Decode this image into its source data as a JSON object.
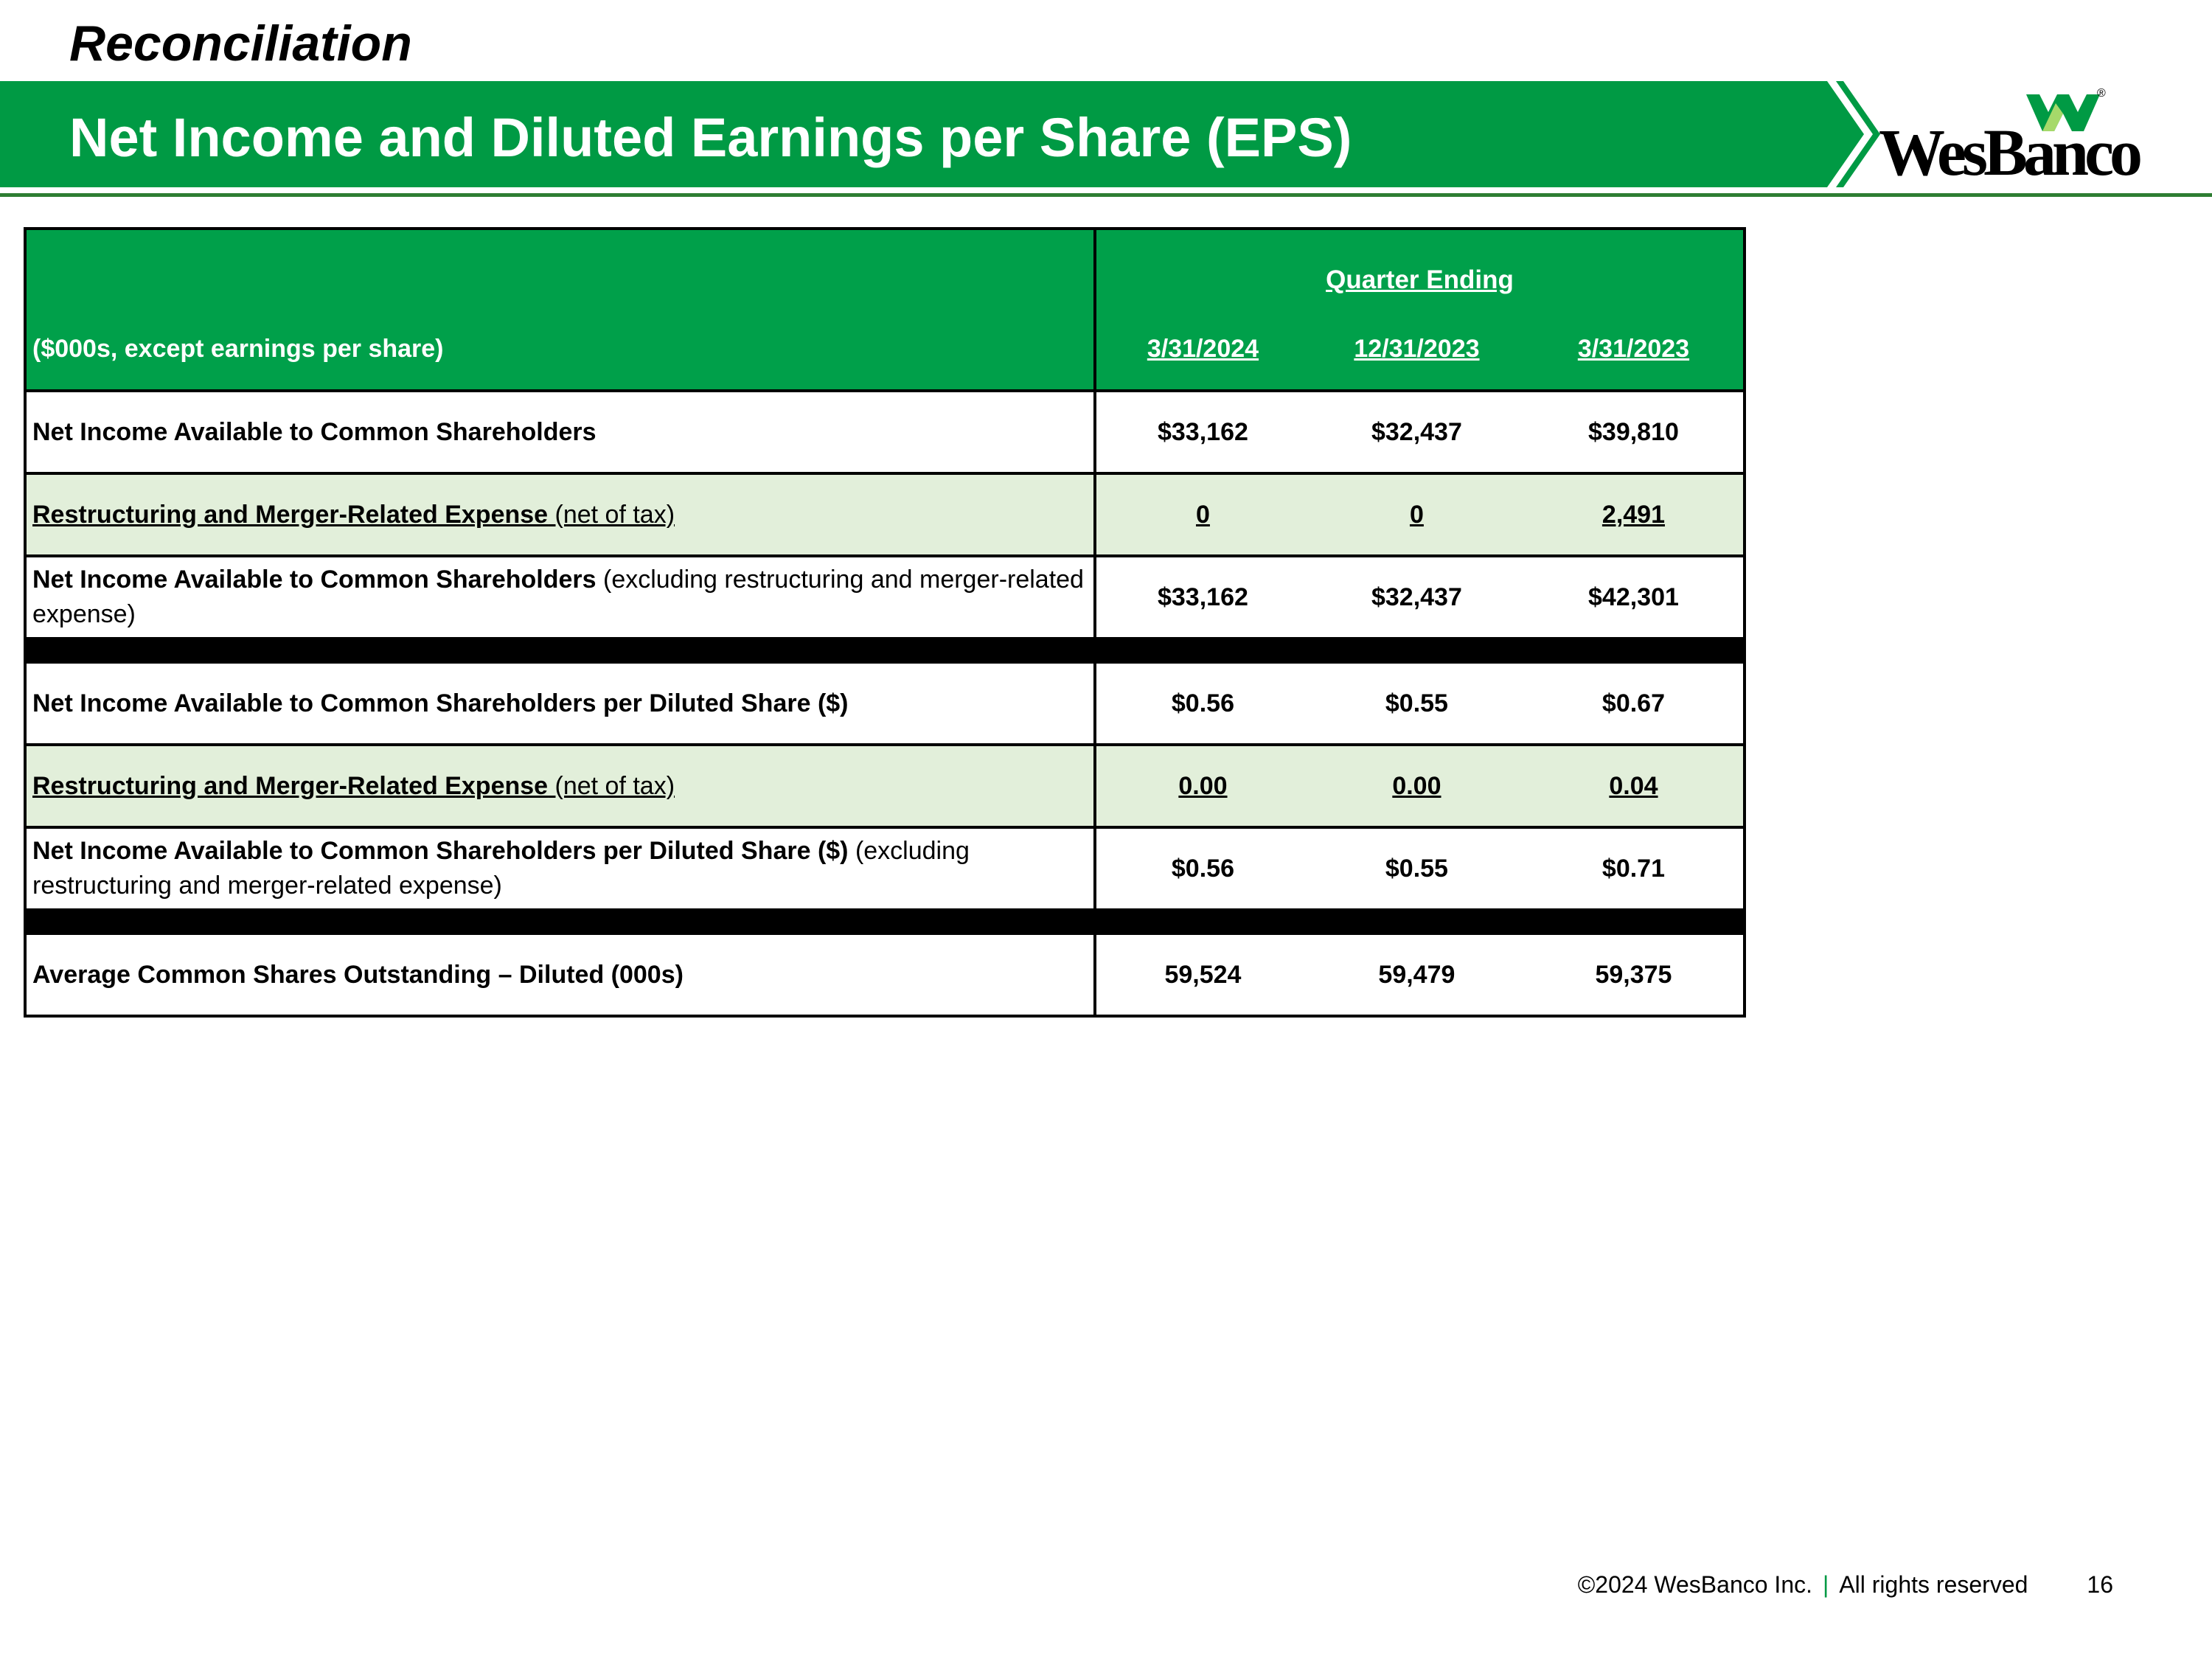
{
  "header": {
    "section": "Reconciliation",
    "title": "Net Income and Diluted Earnings per Share (EPS)"
  },
  "logo": {
    "text": "WesBanco",
    "reg": "®",
    "icon": "wesbanco-w-mark-icon",
    "accent": "#009a44"
  },
  "table": {
    "group_header": "Quarter Ending",
    "unit_label": "($000s, except earnings per share)",
    "columns": [
      "3/31/2024",
      "12/31/2023",
      "3/31/2023"
    ],
    "rows": [
      {
        "label": "Net Income Available to Common Shareholders",
        "suffix": "",
        "values": [
          "$33,162",
          "$32,437",
          "$39,810"
        ]
      },
      {
        "label": "Restructuring and Merger-Related Expense",
        "suffix": " (net of tax)",
        "values": [
          "0",
          "0",
          "2,491"
        ]
      },
      {
        "label": "Net Income Available to Common Shareholders",
        "suffix": " (excluding restructuring and merger-related expense)",
        "values": [
          "$33,162",
          "$32,437",
          "$42,301"
        ]
      },
      {
        "label": "Net Income Available to Common Shareholders per Diluted Share ($)",
        "suffix": "",
        "values": [
          "$0.56",
          "$0.55",
          "$0.67"
        ]
      },
      {
        "label": "Restructuring and Merger-Related Expense",
        "suffix": " (net of tax)",
        "values": [
          "0.00",
          "0.00",
          "0.04"
        ]
      },
      {
        "label": "Net Income Available to Common Shareholders per Diluted Share ($)",
        "suffix": " (excluding restructuring and merger-related expense)",
        "values": [
          "$0.56",
          "$0.55",
          "$0.71"
        ]
      },
      {
        "label": "Average Common Shares Outstanding – Diluted (000s)",
        "suffix": "",
        "values": [
          "59,524",
          "59,479",
          "59,375"
        ]
      }
    ]
  },
  "footer": {
    "copyright": "©2024 WesBanco Inc.",
    "separator": "|",
    "rights": "All rights reserved",
    "page": "16"
  },
  "colors": {
    "brand_green": "#009a44",
    "header_green": "#00a04a",
    "shade": "#e2efda"
  }
}
